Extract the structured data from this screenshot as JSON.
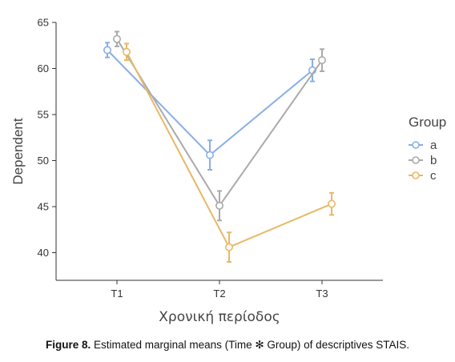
{
  "chart_data": {
    "type": "line",
    "title": "",
    "xlabel": "Χρονική περίοδος",
    "ylabel": "Dependent",
    "categories": [
      "T1",
      "T2",
      "T3"
    ],
    "ylim": [
      37,
      65
    ],
    "yticks": [
      40,
      45,
      50,
      55,
      60,
      65
    ],
    "grid": false,
    "legend": {
      "title": "Group",
      "position": "right"
    },
    "series": [
      {
        "name": "a",
        "color": "#8aaee8",
        "values": [
          62.0,
          50.6,
          59.8
        ],
        "ci_low": [
          61.2,
          49.0,
          58.6
        ],
        "ci_high": [
          62.8,
          52.2,
          61.0
        ]
      },
      {
        "name": "b",
        "color": "#aaaaaa",
        "values": [
          63.2,
          45.1,
          60.9
        ],
        "ci_low": [
          62.4,
          43.5,
          59.7
        ],
        "ci_high": [
          64.0,
          46.7,
          62.1
        ]
      },
      {
        "name": "c",
        "color": "#e8b866",
        "values": [
          61.8,
          40.6,
          45.3
        ],
        "ci_low": [
          60.9,
          39.0,
          44.1
        ],
        "ci_high": [
          62.7,
          42.2,
          46.5
        ]
      }
    ]
  },
  "caption": {
    "figure_label": "Figure 8.",
    "text": " Estimated marginal means (Time ✻ Group) of descriptives STAIS."
  }
}
